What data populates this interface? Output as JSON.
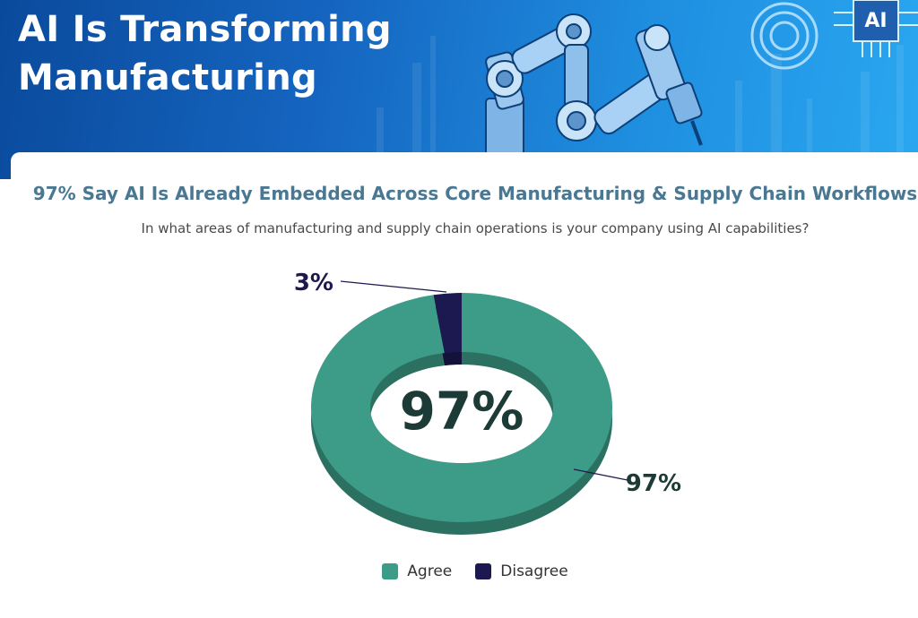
{
  "header": {
    "title_line1": "AI Is Transforming",
    "title_line2": "Manufacturing",
    "chip_label": "AI"
  },
  "chart_data": {
    "type": "pie",
    "title": "97% Say AI Is Already Embedded Across Core Manufacturing & Supply Chain Workflows",
    "subtitle": "In what areas of manufacturing and supply chain operations is your company using AI capabilities?",
    "center_label": "97%",
    "donut": true,
    "legend_position": "bottom",
    "slices": [
      {
        "name": "Agree",
        "value": 97,
        "label": "97%",
        "color": "#3d9c87"
      },
      {
        "name": "Disagree",
        "value": 3,
        "label": "3%",
        "color": "#1c1950"
      }
    ]
  },
  "colors": {
    "hero_dark": "#0a4a9c",
    "hero_light": "#2aa7f0",
    "title_teal": "#4a7893",
    "label_dark": "#1c3a36"
  },
  "icons": {
    "robot": "robot-arm-icon",
    "chip": "ai-chip-icon",
    "rings": "concentric-rings-icon"
  }
}
